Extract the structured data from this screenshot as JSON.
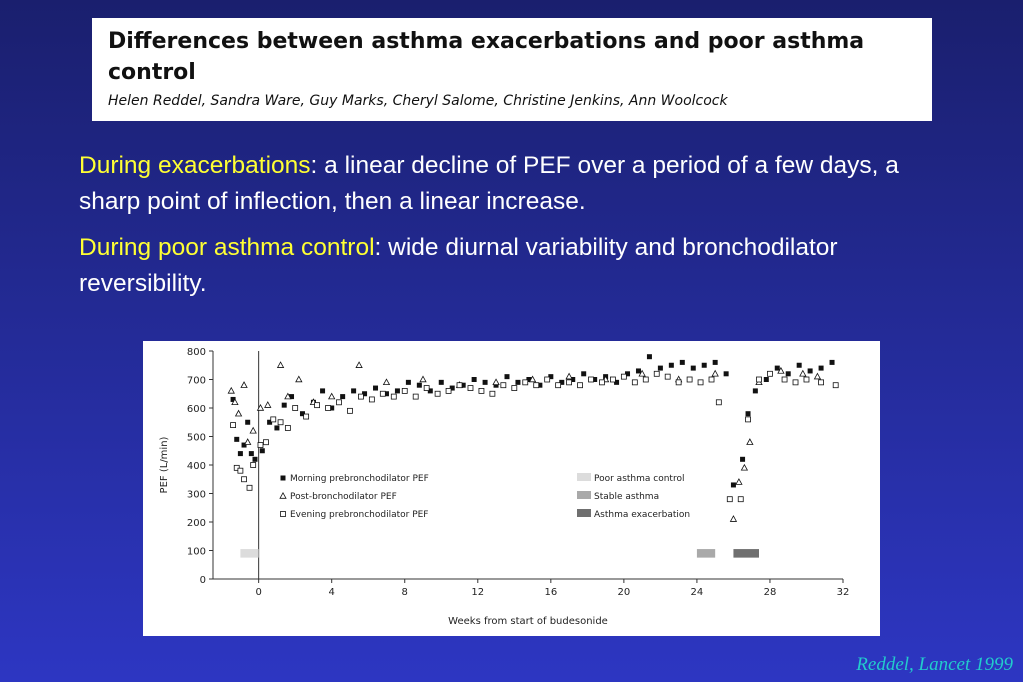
{
  "paper": {
    "title": "Differences between asthma exacerbations and poor asthma control",
    "authors": "Helen Reddel, Sandra Ware, Guy Marks, Cheryl Salome, Christine Jenkins, Ann Woolcock"
  },
  "bullets": [
    {
      "highlight": "During exacerbations",
      "text": ": a linear decline of PEF over a period of a few days, a sharp point of inflection, then a linear increase."
    },
    {
      "highlight": "During poor asthma control",
      "text": ":  wide diurnal variability and bronchodilator reversibility."
    }
  ],
  "credit": "Reddel, Lancet 1999",
  "colors": {
    "highlight": "#ffff33",
    "credit": "#22cccc",
    "background_top": "#1a1f6e",
    "background_bottom": "#2d36c2"
  },
  "chart_data": {
    "type": "scatter",
    "title": "",
    "xlabel": "Weeks from start of budesonide",
    "ylabel": "PEF (L/min)",
    "xlim": [
      -2.5,
      32
    ],
    "ylim": [
      0,
      800
    ],
    "xticks": [
      0,
      4,
      8,
      12,
      16,
      20,
      24,
      28,
      32
    ],
    "yticks": [
      0,
      100,
      200,
      300,
      400,
      500,
      600,
      700,
      800
    ],
    "vertical_line_at": 0,
    "grid": false,
    "series": [
      {
        "name": "Morning prebronchodilator PEF",
        "marker": "filled-square",
        "points": [
          [
            -1.4,
            630
          ],
          [
            -1.2,
            490
          ],
          [
            -1.0,
            440
          ],
          [
            -0.8,
            470
          ],
          [
            -0.6,
            550
          ],
          [
            -0.4,
            440
          ],
          [
            -0.2,
            420
          ],
          [
            0.2,
            450
          ],
          [
            0.4,
            480
          ],
          [
            0.6,
            550
          ],
          [
            1.0,
            530
          ],
          [
            1.4,
            610
          ],
          [
            1.8,
            640
          ],
          [
            2.4,
            580
          ],
          [
            3.0,
            620
          ],
          [
            3.5,
            660
          ],
          [
            4.0,
            600
          ],
          [
            4.6,
            640
          ],
          [
            5.2,
            660
          ],
          [
            5.8,
            650
          ],
          [
            6.4,
            670
          ],
          [
            7.0,
            650
          ],
          [
            7.6,
            660
          ],
          [
            8.2,
            690
          ],
          [
            8.8,
            680
          ],
          [
            9.4,
            660
          ],
          [
            10.0,
            690
          ],
          [
            10.6,
            670
          ],
          [
            11.2,
            680
          ],
          [
            11.8,
            700
          ],
          [
            12.4,
            690
          ],
          [
            13.0,
            680
          ],
          [
            13.6,
            710
          ],
          [
            14.2,
            690
          ],
          [
            14.8,
            700
          ],
          [
            15.4,
            680
          ],
          [
            16.0,
            710
          ],
          [
            16.6,
            690
          ],
          [
            17.2,
            700
          ],
          [
            17.8,
            720
          ],
          [
            18.4,
            700
          ],
          [
            19.0,
            710
          ],
          [
            19.6,
            690
          ],
          [
            20.2,
            720
          ],
          [
            20.8,
            730
          ],
          [
            21.4,
            780
          ],
          [
            22.0,
            740
          ],
          [
            22.6,
            750
          ],
          [
            23.2,
            760
          ],
          [
            23.8,
            740
          ],
          [
            24.4,
            750
          ],
          [
            25.0,
            760
          ],
          [
            25.6,
            720
          ],
          [
            26.0,
            330
          ],
          [
            26.5,
            420
          ],
          [
            26.8,
            580
          ],
          [
            27.2,
            660
          ],
          [
            27.8,
            700
          ],
          [
            28.4,
            740
          ],
          [
            29.0,
            720
          ],
          [
            29.6,
            750
          ],
          [
            30.2,
            730
          ],
          [
            30.8,
            740
          ],
          [
            31.4,
            760
          ]
        ]
      },
      {
        "name": "Post-bronchodilator PEF",
        "marker": "open-triangle",
        "points": [
          [
            -1.5,
            660
          ],
          [
            -1.3,
            620
          ],
          [
            -1.1,
            580
          ],
          [
            -0.8,
            680
          ],
          [
            -0.6,
            480
          ],
          [
            -0.3,
            520
          ],
          [
            0.1,
            600
          ],
          [
            0.5,
            610
          ],
          [
            1.2,
            750
          ],
          [
            1.6,
            640
          ],
          [
            2.2,
            700
          ],
          [
            3.0,
            620
          ],
          [
            4.0,
            640
          ],
          [
            5.5,
            750
          ],
          [
            7.0,
            690
          ],
          [
            9.0,
            700
          ],
          [
            11.0,
            680
          ],
          [
            13.0,
            690
          ],
          [
            15.0,
            700
          ],
          [
            17.0,
            710
          ],
          [
            19.0,
            700
          ],
          [
            21.0,
            720
          ],
          [
            23.0,
            700
          ],
          [
            25.0,
            720
          ],
          [
            26.0,
            210
          ],
          [
            26.3,
            340
          ],
          [
            26.6,
            390
          ],
          [
            26.9,
            480
          ],
          [
            27.4,
            690
          ],
          [
            28.6,
            730
          ],
          [
            29.8,
            720
          ],
          [
            30.6,
            710
          ]
        ]
      },
      {
        "name": "Evening prebronchodilator PEF",
        "marker": "open-square",
        "points": [
          [
            -1.4,
            540
          ],
          [
            -1.2,
            390
          ],
          [
            -1.0,
            380
          ],
          [
            -0.8,
            350
          ],
          [
            -0.5,
            320
          ],
          [
            -0.3,
            400
          ],
          [
            0.1,
            470
          ],
          [
            0.4,
            480
          ],
          [
            0.8,
            560
          ],
          [
            1.2,
            550
          ],
          [
            1.6,
            530
          ],
          [
            2.0,
            600
          ],
          [
            2.6,
            570
          ],
          [
            3.2,
            610
          ],
          [
            3.8,
            600
          ],
          [
            4.4,
            620
          ],
          [
            5.0,
            590
          ],
          [
            5.6,
            640
          ],
          [
            6.2,
            630
          ],
          [
            6.8,
            650
          ],
          [
            7.4,
            640
          ],
          [
            8.0,
            660
          ],
          [
            8.6,
            640
          ],
          [
            9.2,
            670
          ],
          [
            9.8,
            650
          ],
          [
            10.4,
            660
          ],
          [
            11.0,
            680
          ],
          [
            11.6,
            670
          ],
          [
            12.2,
            660
          ],
          [
            12.8,
            650
          ],
          [
            13.4,
            680
          ],
          [
            14.0,
            670
          ],
          [
            14.6,
            690
          ],
          [
            15.2,
            680
          ],
          [
            15.8,
            700
          ],
          [
            16.4,
            680
          ],
          [
            17.0,
            690
          ],
          [
            17.6,
            680
          ],
          [
            18.2,
            700
          ],
          [
            18.8,
            690
          ],
          [
            19.4,
            700
          ],
          [
            20.0,
            710
          ],
          [
            20.6,
            690
          ],
          [
            21.2,
            700
          ],
          [
            21.8,
            720
          ],
          [
            22.4,
            710
          ],
          [
            23.0,
            690
          ],
          [
            23.6,
            700
          ],
          [
            24.2,
            690
          ],
          [
            24.8,
            700
          ],
          [
            25.2,
            620
          ],
          [
            25.8,
            280
          ],
          [
            26.4,
            280
          ],
          [
            26.8,
            560
          ],
          [
            27.4,
            700
          ],
          [
            28.0,
            720
          ],
          [
            28.8,
            700
          ],
          [
            29.4,
            690
          ],
          [
            30.0,
            700
          ],
          [
            30.8,
            690
          ],
          [
            31.6,
            680
          ]
        ]
      }
    ],
    "legend_markers": [
      "Morning prebronchodilator PEF",
      "Post-bronchodilator PEF",
      "Evening prebronchodilator PEF"
    ],
    "periods": [
      {
        "name": "Poor asthma control",
        "color": "#dcdcdc",
        "start": -1.0,
        "end": 0
      },
      {
        "name": "Stable asthma",
        "color": "#a9a9a9",
        "start": 24.0,
        "end": 25.0
      },
      {
        "name": "Asthma exacerbation",
        "color": "#6f6f6f",
        "start": 26.0,
        "end": 27.4
      }
    ],
    "period_bar_level": 90
  }
}
